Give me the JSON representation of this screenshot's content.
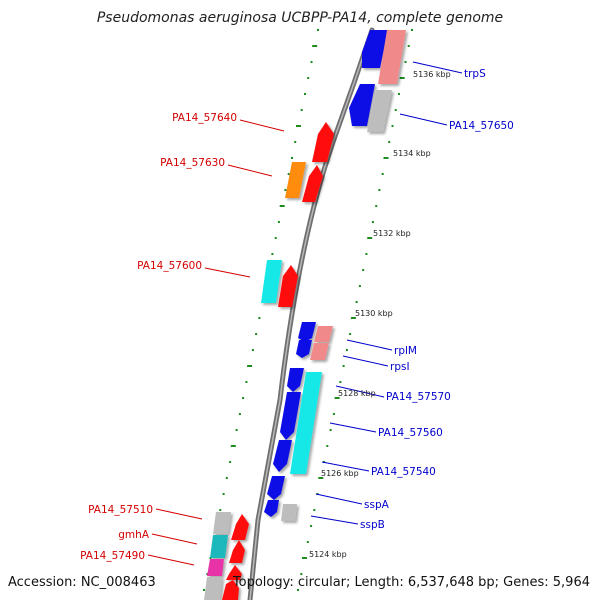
{
  "title": "Pseudomonas aeruginosa UCBPP-PA14, complete genome",
  "footer": {
    "accession": "Accession: NC_008463",
    "topology": "Topology: circular; Length: 6,537,648 bp; Genes: 5,964"
  },
  "colors": {
    "backbone": "#8c8c8c",
    "tick": "#1f8c1f",
    "label_forward": "#d40000",
    "label_reverse": "#0000cc",
    "gene_red": "#ff1010",
    "gene_blue": "#1010e6",
    "gene_cyan": "#18e8e8",
    "gene_teal": "#1ab8bc",
    "gene_orange": "#ff8c10",
    "gene_salmon": "#f08a8a",
    "gene_gray": "#bdbdbd",
    "gene_magenta": "#e830a8"
  },
  "scale_labels": [
    {
      "text": "5136 kbp",
      "kbp": 5136
    },
    {
      "text": "5134 kbp",
      "kbp": 5134
    },
    {
      "text": "5132 kbp",
      "kbp": 5132
    },
    {
      "text": "5130 kbp",
      "kbp": 5130
    },
    {
      "text": "5128 kbp",
      "kbp": 5128
    },
    {
      "text": "5126 kbp",
      "kbp": 5126
    },
    {
      "text": "5124 kbp",
      "kbp": 5124
    }
  ],
  "gene_labels": [
    {
      "text": "trpS",
      "strand": "reverse"
    },
    {
      "text": "PA14_57650",
      "strand": "reverse"
    },
    {
      "text": "PA14_57640",
      "strand": "forward"
    },
    {
      "text": "PA14_57630",
      "strand": "forward"
    },
    {
      "text": "PA14_57600",
      "strand": "forward"
    },
    {
      "text": "rplM",
      "strand": "reverse"
    },
    {
      "text": "rpsI",
      "strand": "reverse"
    },
    {
      "text": "PA14_57570",
      "strand": "reverse"
    },
    {
      "text": "PA14_57560",
      "strand": "reverse"
    },
    {
      "text": "PA14_57540",
      "strand": "reverse"
    },
    {
      "text": "sspA",
      "strand": "reverse"
    },
    {
      "text": "sspB",
      "strand": "reverse"
    },
    {
      "text": "PA14_57510",
      "strand": "forward"
    },
    {
      "text": "gmhA",
      "strand": "forward"
    },
    {
      "text": "PA14_57490",
      "strand": "forward"
    }
  ]
}
